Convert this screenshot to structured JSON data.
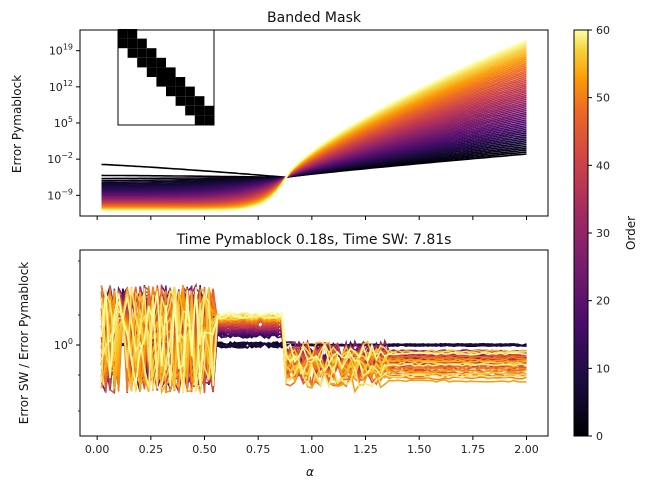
{
  "chart_data": [
    {
      "type": "line",
      "title": "Banded Mask",
      "xlabel": "",
      "ylabel": "Error Pymablock",
      "yscale": "log",
      "xlim": [
        -0.08,
        2.1
      ],
      "ylim_exp": [
        -13,
        23
      ],
      "xticks": [
        0.0,
        0.25,
        0.5,
        0.75,
        1.0,
        1.25,
        1.5,
        1.75,
        2.0
      ],
      "yticks": [
        {
          "exp": -9,
          "label": "10",
          "sup": "−9"
        },
        {
          "exp": -2,
          "label": "10",
          "sup": "−2"
        },
        {
          "exp": 5,
          "label": "10",
          "sup": "5"
        },
        {
          "exp": 12,
          "label": "10",
          "sup": "12"
        },
        {
          "exp": 19,
          "label": "10",
          "sup": "19"
        }
      ],
      "series_count": 61,
      "order_range": [
        0,
        60
      ],
      "description_model": "log10(error) vs alpha per order n: low-order curves flat near 1e-3 to 1e-11 at small alpha, all converge near alpha≈0.88, error at 2.0 rises from ~1e-1 (n=0) to ~1e21 (n=60)",
      "inset": "banded-mask"
    },
    {
      "type": "line",
      "title": "Time Pymablock 0.18s, Time SW: 7.81s",
      "xlabel": "α",
      "ylabel": "Error SW / Error Pymablock",
      "yscale": "log",
      "xlim": [
        -0.08,
        2.1
      ],
      "xticks": [
        0.0,
        0.25,
        0.5,
        0.75,
        1.0,
        1.25,
        1.5,
        1.75,
        2.0
      ],
      "xticklabels": [
        "0.00",
        "0.25",
        "0.50",
        "0.75",
        "1.00",
        "1.25",
        "1.50",
        "1.75",
        "2.00"
      ],
      "yticks": [
        {
          "exp": 0,
          "label": "10",
          "sup": "0"
        }
      ],
      "series_count": 61,
      "order_range": [
        0,
        60
      ]
    }
  ],
  "colorbar": {
    "label": "Order",
    "min": 0,
    "max": 60,
    "ticks": [
      0,
      10,
      20,
      30,
      40,
      50,
      60
    ],
    "colormap": "inferno"
  }
}
